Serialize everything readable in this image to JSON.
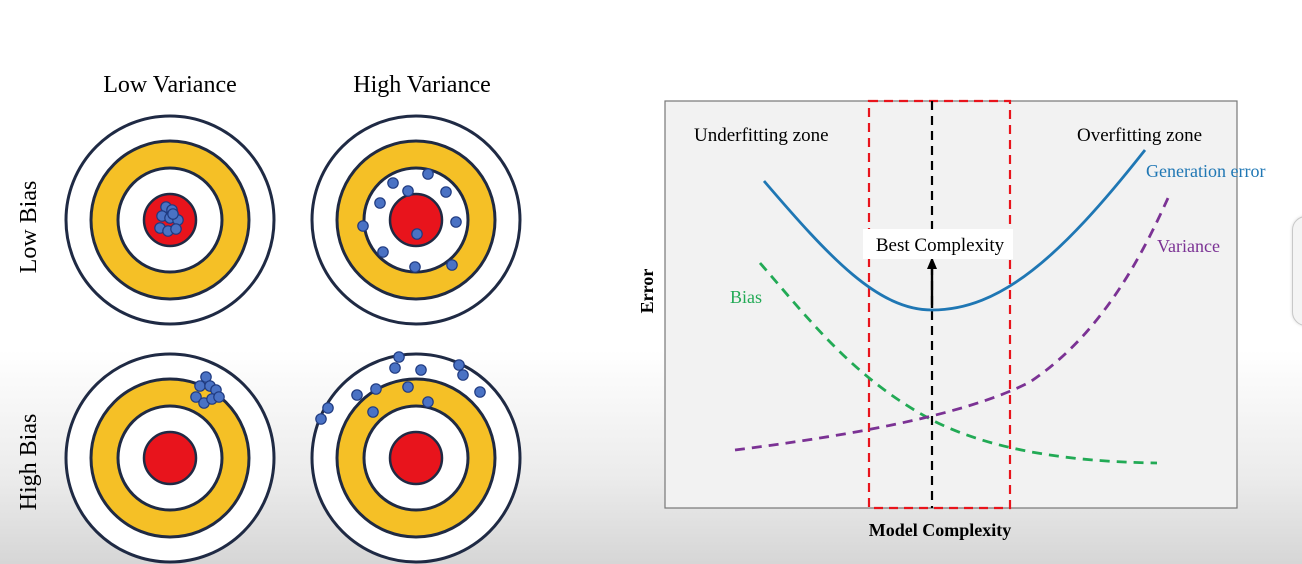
{
  "targets": {
    "col_labels": [
      "Low Variance",
      "High Variance"
    ],
    "row_labels": [
      "Low Bias",
      "High Bias"
    ],
    "colors": {
      "outer_ring": "#ffffff",
      "ring_stroke": "#1f2a44",
      "gold": "#f5c026",
      "bullseye": "#e8141c",
      "dot": "#4a72c4",
      "dot_stroke": "#1f3a80"
    }
  },
  "chart": {
    "title": "",
    "xlabel": "Model Complexity",
    "ylabel": "Error",
    "zone_left": "Underfitting zone",
    "zone_right": "Overfitting zone",
    "best_label": "Best Complexity",
    "colors": {
      "generation": "#1f77b4",
      "variance": "#7b3294",
      "bias": "#22aa55",
      "box": "#e8141c",
      "best_line": "#000000"
    }
  },
  "chart_data": {
    "type": "line",
    "xlabel": "Model Complexity",
    "ylabel": "Error",
    "ticks": "none",
    "series": [
      {
        "name": "Generation error",
        "style": "solid",
        "color": "#1f77b4"
      },
      {
        "name": "Variance",
        "style": "dashed",
        "color": "#7b3294"
      },
      {
        "name": "Bias",
        "style": "dashed",
        "color": "#22aa55"
      }
    ],
    "annotations": [
      "Underfitting zone",
      "Overfitting zone",
      "Best Complexity"
    ],
    "grid": false
  }
}
